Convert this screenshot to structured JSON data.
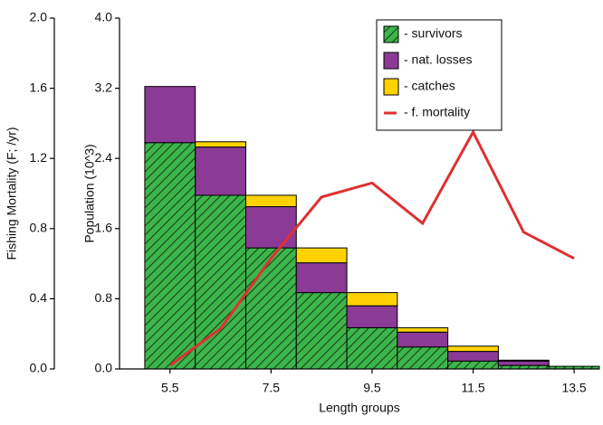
{
  "chart_data": {
    "type": "histogram",
    "stacked": true,
    "xlabel": "Length groups",
    "ylabel": "Population (10^3)",
    "y2label": "Fishing Mortality (F; /yr)",
    "bins": [
      5,
      6,
      7,
      8,
      9,
      10,
      11,
      12,
      13,
      14
    ],
    "series": [
      {
        "name": "- survivors",
        "color": "#3cb54a",
        "hatch": true,
        "values": [
          2.58,
          1.98,
          1.38,
          0.87,
          0.47,
          0.25,
          0.09,
          0.04,
          0.03
        ]
      },
      {
        "name": "- nat. losses",
        "color": "#8b3a96",
        "values": [
          0.64,
          0.55,
          0.47,
          0.34,
          0.25,
          0.17,
          0.11,
          0.05,
          0
        ]
      },
      {
        "name": "- catches",
        "color": "#ffd200",
        "values": [
          0,
          0.06,
          0.13,
          0.17,
          0.15,
          0.05,
          0.06,
          0.01,
          0
        ]
      },
      {
        "name": "- f. mortality",
        "color": "#e03030",
        "type": "line",
        "axis": "y2",
        "x": [
          5.5,
          6.5,
          7.5,
          8.5,
          9.5,
          10.5,
          11.5,
          12.5,
          13.5
        ],
        "values": [
          0.02,
          0.23,
          0.63,
          0.98,
          1.06,
          0.83,
          1.35,
          0.78,
          0.63
        ]
      }
    ],
    "xlim": [
      4.5,
      14
    ],
    "xticks": [
      5.5,
      7.5,
      9.5,
      11.5,
      13.5
    ],
    "ylim": [
      0,
      4
    ],
    "yticks": [
      {
        "value": 0,
        "label": "0.0"
      },
      0.8,
      1.6,
      2.4,
      3.2,
      {
        "value": 4,
        "label": "4.0"
      }
    ],
    "y2lim": [
      0,
      2
    ],
    "y2ticks": [
      {
        "value": 0,
        "label": "0.0"
      },
      0.4,
      0.8,
      1.2,
      1.6,
      {
        "value": 2,
        "label": "2.0"
      }
    ],
    "legend": "upper right"
  }
}
